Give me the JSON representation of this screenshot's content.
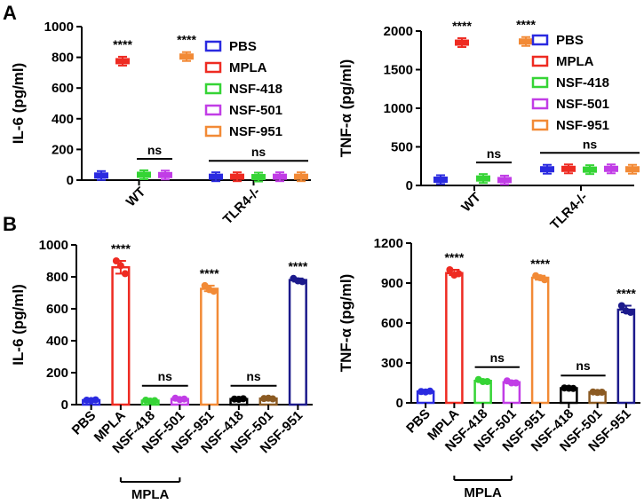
{
  "figure": {
    "panel_a": "A",
    "panel_b": "B",
    "bracket_label": "MPLA"
  },
  "chart_data": [
    {
      "id": "A1",
      "type": "scatter",
      "title": "",
      "xlabel": "",
      "ylabel": "IL-6 (pg/ml)",
      "ylim": [
        0,
        1000
      ],
      "yticks": [
        "0",
        "200",
        "400",
        "600",
        "800",
        "1000"
      ],
      "categories": [
        "WT",
        "TLR4-/-"
      ],
      "legend": {
        "position": "top-right",
        "entries": [
          "PBS",
          "MPLA",
          "NSF-418",
          "NSF-501",
          "NSF-951"
        ]
      },
      "series": [
        {
          "name": "PBS",
          "color": "#2a2ae0",
          "values": [
            30,
            22
          ]
        },
        {
          "name": "MPLA",
          "color": "#ee2b22",
          "values": [
            775,
            22
          ]
        },
        {
          "name": "NSF-418",
          "color": "#35d435",
          "values": [
            35,
            20
          ]
        },
        {
          "name": "NSF-501",
          "color": "#c13de6",
          "values": [
            33,
            22
          ]
        },
        {
          "name": "NSF-951",
          "color": "#f28a36",
          "values": [
            805,
            22
          ]
        }
      ],
      "annotations": [
        {
          "text": "****",
          "category": 0,
          "series": 1
        },
        {
          "text": "****",
          "category": 0,
          "series": 4
        },
        {
          "text": "ns",
          "category": 0,
          "from": 2,
          "to": 3
        },
        {
          "text": "ns",
          "category": 1,
          "from": 0,
          "to": 4
        }
      ]
    },
    {
      "id": "A2",
      "type": "scatter",
      "title": "",
      "xlabel": "",
      "ylabel": "TNF-α (pg/ml)",
      "ylim": [
        0,
        2000
      ],
      "yticks": [
        "0",
        "500",
        "1000",
        "1500",
        "2000"
      ],
      "categories": [
        "WT",
        "TLR4-/-"
      ],
      "legend": {
        "position": "top-right",
        "entries": [
          "PBS",
          "MPLA",
          "NSF-418",
          "NSF-501",
          "NSF-951"
        ]
      },
      "series": [
        {
          "name": "PBS",
          "color": "#2a2ae0",
          "values": [
            75,
            210
          ]
        },
        {
          "name": "MPLA",
          "color": "#ee2b22",
          "values": [
            1850,
            215
          ]
        },
        {
          "name": "NSF-418",
          "color": "#35d435",
          "values": [
            90,
            205
          ]
        },
        {
          "name": "NSF-501",
          "color": "#c13de6",
          "values": [
            70,
            215
          ]
        },
        {
          "name": "NSF-951",
          "color": "#f28a36",
          "values": [
            1865,
            210
          ]
        }
      ],
      "annotations": [
        {
          "text": "****",
          "category": 0,
          "series": 1
        },
        {
          "text": "****",
          "category": 0,
          "series": 4
        },
        {
          "text": "ns",
          "category": 0,
          "from": 2,
          "to": 3
        },
        {
          "text": "ns",
          "category": 1,
          "from": 0,
          "to": 4
        }
      ]
    },
    {
      "id": "B1",
      "type": "bar",
      "title": "",
      "xlabel": "",
      "ylabel": "IL-6 (pg/ml)",
      "ylim": [
        0,
        1000
      ],
      "yticks": [
        "0",
        "200",
        "400",
        "600",
        "800",
        "1000"
      ],
      "categories": [
        "PBS",
        "MPLA",
        "NSF-418",
        "NSF-501",
        "NSF-951",
        "NSF-418",
        "NSF-501",
        "NSF-951"
      ],
      "colors": [
        "#2a2ae0",
        "#ee2b22",
        "#35d435",
        "#c13de6",
        "#f28a36",
        "#000000",
        "#8b5a22",
        "#1c1a8c"
      ],
      "values": [
        28,
        860,
        25,
        35,
        725,
        35,
        38,
        780
      ],
      "points": [
        [
          28,
          26,
          30
        ],
        [
          900,
          870,
          820
        ],
        [
          28,
          22,
          25
        ],
        [
          40,
          32,
          35
        ],
        [
          745,
          720,
          710
        ],
        [
          35,
          33,
          37
        ],
        [
          38,
          40,
          36
        ],
        [
          790,
          775,
          770
        ]
      ],
      "bracket": {
        "from": 1,
        "to": 3
      },
      "annotations": [
        {
          "text": "****",
          "index": 1
        },
        {
          "text": "****",
          "index": 4
        },
        {
          "text": "****",
          "index": 7
        },
        {
          "text": "ns",
          "from": 2,
          "to": 3
        },
        {
          "text": "ns",
          "from": 5,
          "to": 6
        }
      ]
    },
    {
      "id": "B2",
      "type": "bar",
      "title": "",
      "xlabel": "",
      "ylabel": "TNF-α (pg/ml)",
      "ylim": [
        0,
        1200
      ],
      "yticks": [
        "0",
        "300",
        "600",
        "900",
        "1200"
      ],
      "categories": [
        "PBS",
        "MPLA",
        "NSF-418",
        "NSF-501",
        "NSF-951",
        "NSF-418",
        "NSF-501",
        "NSF-951"
      ],
      "colors": [
        "#2a2ae0",
        "#ee2b22",
        "#35d435",
        "#c13de6",
        "#f28a36",
        "#000000",
        "#8b5a22",
        "#1c1a8c"
      ],
      "values": [
        85,
        975,
        165,
        155,
        940,
        110,
        80,
        700
      ],
      "points": [
        [
          85,
          82,
          88
        ],
        [
          1000,
          960,
          970
        ],
        [
          175,
          160,
          160
        ],
        [
          165,
          150,
          150
        ],
        [
          955,
          940,
          925
        ],
        [
          112,
          110,
          108
        ],
        [
          82,
          78,
          80
        ],
        [
          730,
          690,
          680
        ]
      ],
      "bracket": {
        "from": 1,
        "to": 3
      },
      "annotations": [
        {
          "text": "****",
          "index": 1
        },
        {
          "text": "****",
          "index": 4
        },
        {
          "text": "****",
          "index": 7
        },
        {
          "text": "ns",
          "from": 2,
          "to": 3
        },
        {
          "text": "ns",
          "from": 5,
          "to": 6
        }
      ]
    }
  ]
}
